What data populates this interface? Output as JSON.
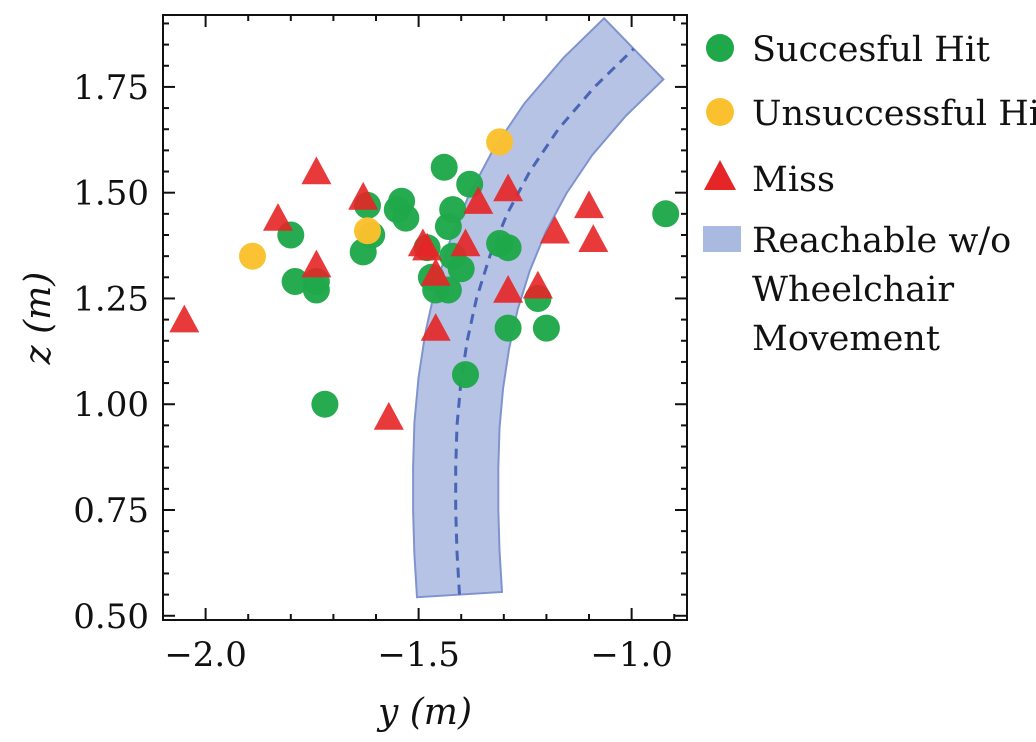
{
  "chart_data": {
    "type": "scatter",
    "xlabel": "y (m)",
    "ylabel": "z (m)",
    "xlim": [
      -2.1,
      -0.87
    ],
    "ylim": [
      0.49,
      1.92
    ],
    "xticks": [
      -2.0,
      -1.5,
      -1.0
    ],
    "xtick_labels": [
      "−2.0",
      "−1.5",
      "−1.0"
    ],
    "yticks": [
      0.5,
      0.75,
      1.0,
      1.25,
      1.5,
      1.75
    ],
    "ytick_labels": [
      "0.50",
      "0.75",
      "1.00",
      "1.25",
      "1.50",
      "1.75"
    ],
    "grid": false,
    "legend_position": "outside-right",
    "series": [
      {
        "name": "Succesful Hit",
        "marker": "circle",
        "color": "#1fa84a",
        "x": [
          -1.8,
          -1.79,
          -1.74,
          -1.74,
          -1.72,
          -1.63,
          -1.62,
          -1.61,
          -1.55,
          -1.54,
          -1.53,
          -1.48,
          -1.47,
          -1.46,
          -1.44,
          -1.43,
          -1.42,
          -1.43,
          -1.42,
          -1.4,
          -1.39,
          -1.38,
          -1.31,
          -1.29,
          -1.29,
          -1.22,
          -1.2,
          -0.92
        ],
        "y": [
          1.4,
          1.29,
          1.29,
          1.27,
          1.0,
          1.36,
          1.47,
          1.4,
          1.46,
          1.48,
          1.44,
          1.37,
          1.3,
          1.27,
          1.56,
          1.27,
          1.46,
          1.42,
          1.35,
          1.32,
          1.07,
          1.52,
          1.38,
          1.37,
          1.18,
          1.25,
          1.18,
          1.45
        ]
      },
      {
        "name": "Unsuccessful Hit",
        "marker": "circle",
        "color": "#fbc02d",
        "x": [
          -1.89,
          -1.62,
          -1.31
        ],
        "y": [
          1.35,
          1.41,
          1.62
        ]
      },
      {
        "name": "Miss",
        "marker": "triangle",
        "color": "#e52526",
        "x": [
          -2.05,
          -1.83,
          -1.74,
          -1.74,
          -1.63,
          -1.57,
          -1.49,
          -1.48,
          -1.46,
          -1.46,
          -1.39,
          -1.36,
          -1.29,
          -1.29,
          -1.22,
          -1.18,
          -1.1,
          -1.09
        ],
        "y": [
          1.2,
          1.44,
          1.55,
          1.33,
          1.49,
          0.97,
          1.38,
          1.37,
          1.18,
          1.31,
          1.38,
          1.48,
          1.51,
          1.27,
          1.28,
          1.41,
          1.47,
          1.39
        ]
      }
    ],
    "reachable_band": {
      "name": "Reachable w/o Wheelchair Movement",
      "legend_lines": [
        "Reachable w/o",
        "Wheelchair",
        "Movement"
      ],
      "fill_color": "#aab9e0",
      "edge_color": "#7f93cf",
      "centerline_color": "#4a65b5",
      "centerline": [
        [
          -1.404,
          0.55
        ],
        [
          -1.41,
          0.65
        ],
        [
          -1.413,
          0.75
        ],
        [
          -1.413,
          0.85
        ],
        [
          -1.41,
          0.95
        ],
        [
          -1.401,
          1.05
        ],
        [
          -1.386,
          1.15
        ],
        [
          -1.364,
          1.25
        ],
        [
          -1.333,
          1.35
        ],
        [
          -1.292,
          1.45
        ],
        [
          -1.239,
          1.55
        ],
        [
          -1.172,
          1.65
        ],
        [
          -1.087,
          1.75
        ],
        [
          -0.995,
          1.84
        ]
      ],
      "half_width": 0.1
    }
  }
}
